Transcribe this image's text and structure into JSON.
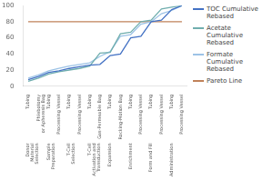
{
  "chart_data": {
    "type": "line",
    "categories": [
      "Tubing",
      "Phlebotomy\nor Apheresis Bag",
      "Tubing",
      "Processing Vessel",
      "Tubing",
      "Processing Vessel",
      "Tubing",
      "Gas-Permeable Bag",
      "Tubing",
      "Rocking-Motion Bag",
      "Tubing",
      "Processing Vessel",
      "Tubing",
      "Processing Vessel",
      "Tubing",
      "Processing Vessel"
    ],
    "annotations": [
      "Donor\nMaterial\nSelection",
      null,
      "Sample\nPreparation",
      null,
      "T-Cell\nSelection",
      null,
      "T-Cell\nActivation and\nTransduction",
      null,
      "Expansion",
      null,
      "Enrichment",
      null,
      "Form and Fill",
      null,
      "Administration",
      null
    ],
    "series": [
      {
        "name": "TOC Cumulative\nRebased",
        "color": "#4472c4",
        "values": [
          8,
          12,
          17,
          19,
          22,
          24,
          26,
          27,
          38,
          40,
          60,
          62,
          80,
          82,
          95,
          100
        ]
      },
      {
        "name": "Acetate Cumulative\nRebased",
        "color": "#70aeae",
        "values": [
          6,
          10,
          15,
          18,
          20,
          22,
          25,
          41,
          42,
          65,
          67,
          80,
          82,
          96,
          98,
          100
        ]
      },
      {
        "name": "Formate Cumulative\nRebased",
        "color": "#9dc3e6",
        "values": [
          10,
          14,
          19,
          22,
          25,
          27,
          29,
          37,
          43,
          62,
          64,
          77,
          80,
          90,
          94,
          100
        ]
      },
      {
        "name": "Pareto Line",
        "color": "#c0825a",
        "values": [
          80,
          80,
          80,
          80,
          80,
          80,
          80,
          80,
          80,
          80,
          80,
          80,
          80,
          80,
          80,
          80
        ]
      }
    ],
    "ylim": [
      0,
      100
    ],
    "yticks": [
      0,
      20,
      40,
      60,
      80,
      100
    ],
    "grid": false,
    "legend": "right"
  }
}
